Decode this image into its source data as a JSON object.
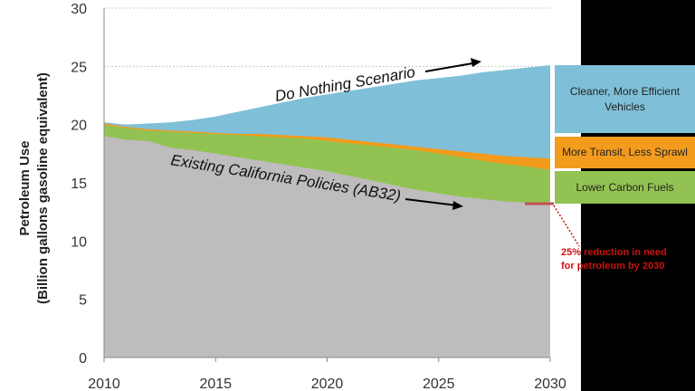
{
  "chart_data": {
    "type": "area",
    "ylabel_line1": "Petroleum Use",
    "ylabel_line2": "(Billion gallons gasoline equivalent)",
    "xlim": [
      2010,
      2030
    ],
    "ylim": [
      0,
      30
    ],
    "xticks": [
      "2010",
      "2015",
      "2020",
      "2025",
      "2030"
    ],
    "yticks": [
      "0",
      "5",
      "10",
      "15",
      "20",
      "25",
      "30"
    ],
    "grid": "horizontal dotted",
    "x": [
      2010,
      2011,
      2012,
      2013,
      2014,
      2015,
      2016,
      2017,
      2018,
      2019,
      2020,
      2021,
      2022,
      2023,
      2024,
      2025,
      2026,
      2027,
      2028,
      2029,
      2030
    ],
    "series": [
      {
        "key": "existing",
        "color": "#bebcbd",
        "values": [
          19.0,
          18.7,
          18.6,
          18.0,
          17.8,
          17.5,
          17.2,
          16.9,
          16.6,
          16.3,
          16.0,
          15.6,
          15.2,
          14.8,
          14.4,
          14.1,
          13.8,
          13.6,
          13.4,
          13.3,
          13.2
        ]
      },
      {
        "key": "lower_carbon_fuels",
        "color": "#92c352",
        "values": [
          20.0,
          19.7,
          19.5,
          19.4,
          19.3,
          19.2,
          19.1,
          19.0,
          18.9,
          18.8,
          18.6,
          18.4,
          18.2,
          18.0,
          17.8,
          17.5,
          17.2,
          16.9,
          16.6,
          16.4,
          16.1
        ]
      },
      {
        "key": "more_transit",
        "color": "#f39b1d",
        "values": [
          20.1,
          19.8,
          19.6,
          19.5,
          19.4,
          19.3,
          19.2,
          19.2,
          19.1,
          19.0,
          18.9,
          18.7,
          18.5,
          18.3,
          18.1,
          17.9,
          17.7,
          17.5,
          17.3,
          17.2,
          17.1
        ]
      },
      {
        "key": "do_nothing",
        "color": "#7fc0d8",
        "values": [
          20.2,
          20.0,
          20.1,
          20.2,
          20.4,
          20.7,
          21.1,
          21.5,
          21.9,
          22.3,
          22.6,
          22.9,
          23.2,
          23.5,
          23.8,
          24.0,
          24.2,
          24.5,
          24.7,
          24.9,
          25.1
        ]
      }
    ],
    "annotations": {
      "do_nothing": "Do Nothing Scenario",
      "existing": "Existing California Policies (AB32)",
      "reduction": "25% reduction in need for petroleum by 2030"
    },
    "legend": [
      {
        "label": "Cleaner, More Efficient Vehicles",
        "color": "#7fc0d8"
      },
      {
        "label": "More Transit, Less Sprawl",
        "color": "#f39b1d"
      },
      {
        "label": "Lower Carbon Fuels",
        "color": "#92c352"
      }
    ]
  }
}
